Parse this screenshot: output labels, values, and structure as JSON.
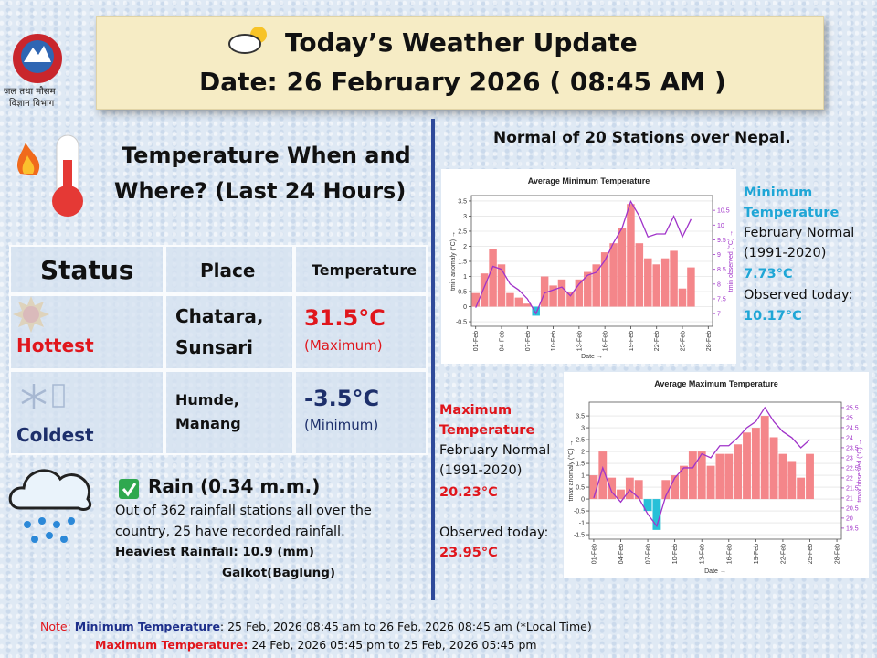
{
  "header": {
    "title": "Today’s Weather Update",
    "date": "Date: 26 February 2026  ( 08:45 AM )"
  },
  "logo": {
    "caption": [
      "जल तथा मौसम",
      "विज्ञान विभाग"
    ]
  },
  "section_title": [
    "Temperature When and",
    "Where?  (Last 24 Hours)"
  ],
  "table": {
    "header": [
      "Status",
      "Place",
      "Temperature"
    ],
    "rows": [
      {
        "status": "Hottest",
        "place": [
          "Chatara,",
          "Sunsari"
        ],
        "temp": "31.5°C",
        "qualifier": "(Maximum)"
      },
      {
        "status": "Coldest",
        "place": [
          "Humde,",
          "Manang"
        ],
        "temp": "-3.5°C",
        "qualifier": "(Minimum)"
      }
    ]
  },
  "rain": {
    "title": "Rain  (0.34 m.m.)",
    "text": [
      "Out of 362 rainfall stations all over the",
      "country, 25 have recorded rainfall."
    ],
    "heaviest": "Heaviest Rainfall: 10.9 (mm)",
    "place": "Galkot(Baglung)"
  },
  "normals": {
    "title": "Normal of 20 Stations over Nepal.",
    "min_panel": {
      "label": [
        "Minimum",
        "Temperature"
      ],
      "normal_label": [
        "February Normal",
        "(1991-2020)"
      ],
      "normal": "7.73°C",
      "observed_label": "Observed today:",
      "observed": "10.17°C"
    },
    "max_panel": {
      "label": [
        "Maximum",
        "Temperature"
      ],
      "normal_label": [
        "February Normal",
        "(1991-2020)"
      ],
      "normal": "20.23°C",
      "observed_label": "Observed today:",
      "observed": "23.95°C"
    }
  },
  "note": {
    "label": "Note:",
    "min_label": "Minimum Temperature",
    "min_range": ": 25 Feb, 2026  08:45 am  to 26 Feb, 2026  08:45 am (*Local Time)",
    "max_label": "Maximum Temperature:",
    "max_range": "  24 Feb, 2026  05:45 pm  to 25 Feb, 2026  05:45 pm"
  },
  "chart_data": [
    {
      "type": "bar",
      "title": "Average Minimum Temperature",
      "x_label": "Date →",
      "y_label": "tmin anomaly (°C) →",
      "y2_label": "tmin observed (°C) →",
      "categories": [
        "01-Feb",
        null,
        null,
        "04-Feb",
        null,
        null,
        "07-Feb",
        null,
        null,
        "10-Feb",
        null,
        null,
        "13-Feb",
        null,
        null,
        "16-Feb",
        null,
        null,
        "19-Feb",
        null,
        null,
        "22-Feb",
        null,
        null,
        "25-Feb",
        null,
        null,
        "28-Feb"
      ],
      "series": [
        {
          "color": "#f4868a",
          "negative_color": "#27c0d8",
          "values": [
            0.45,
            1.1,
            1.9,
            1.4,
            0.45,
            0.3,
            0.1,
            -0.3,
            1.0,
            0.7,
            0.9,
            0.5,
            0.9,
            1.15,
            1.4,
            1.8,
            2.1,
            2.6,
            3.4,
            2.1,
            1.6,
            1.4,
            1.6,
            1.85,
            0.6,
            1.3,
            null,
            null
          ]
        },
        {
          "type": "line",
          "axis": "y2",
          "color": "#a033c9",
          "values": [
            7.2,
            7.9,
            8.6,
            8.5,
            8.0,
            7.8,
            7.5,
            7.0,
            7.7,
            7.8,
            7.9,
            7.6,
            8.0,
            8.3,
            8.4,
            8.8,
            9.4,
            9.9,
            10.8,
            10.3,
            9.6,
            9.7,
            9.7,
            10.3,
            9.6,
            10.2,
            null,
            null
          ]
        }
      ],
      "ylim": [
        -0.65,
        3.68
      ],
      "yticks": [
        -0.5,
        0,
        0.5,
        1,
        1.5,
        2,
        2.5,
        3,
        3.5
      ],
      "y2lim": [
        6.57,
        11.0
      ],
      "y2ticks": [
        7,
        7.5,
        8,
        8.5,
        9,
        9.5,
        10,
        10.5
      ],
      "grid": true
    },
    {
      "type": "bar",
      "title": "Average Maximum Temperature",
      "x_label": "Date →",
      "y_label": "tmax anomaly (°C) →",
      "y2_label": "tmax observed (°C) →",
      "categories": [
        "01-Feb",
        null,
        null,
        "04-Feb",
        null,
        null,
        "07-Feb",
        null,
        null,
        "10-Feb",
        null,
        null,
        "13-Feb",
        null,
        null,
        "16-Feb",
        null,
        null,
        "19-Feb",
        null,
        null,
        "22-Feb",
        null,
        null,
        "25-Feb",
        null,
        null,
        "28-Feb"
      ],
      "series": [
        {
          "color": "#f4868a",
          "negative_color": "#27c0d8",
          "values": [
            1.0,
            2.0,
            0.9,
            0.4,
            0.9,
            0.8,
            -0.5,
            -1.3,
            0.8,
            1.0,
            1.4,
            2.0,
            2.0,
            1.4,
            1.9,
            1.9,
            2.3,
            2.8,
            3.0,
            3.5,
            2.6,
            1.9,
            1.6,
            0.9,
            1.9,
            null,
            null,
            null
          ]
        },
        {
          "type": "line",
          "axis": "y2",
          "color": "#a033c9",
          "values": [
            21.0,
            22.5,
            21.3,
            20.8,
            21.4,
            21.0,
            20.2,
            19.6,
            21.1,
            22.0,
            22.5,
            22.5,
            23.2,
            23.0,
            23.6,
            23.6,
            24.0,
            24.5,
            24.8,
            25.5,
            24.8,
            24.3,
            24.0,
            23.5,
            23.9,
            null,
            null,
            null
          ]
        }
      ],
      "ylim": [
        -1.69,
        4.08
      ],
      "yticks": [
        -1.5,
        -1,
        -0.5,
        0,
        0.5,
        1,
        1.5,
        2,
        2.5,
        3,
        3.5
      ],
      "y2lim": [
        18.95,
        25.77
      ],
      "y2ticks": [
        19.5,
        20,
        20.5,
        21,
        21.5,
        22,
        22.5,
        23,
        23.5,
        24,
        24.5,
        25,
        25.5
      ],
      "grid": true
    }
  ]
}
